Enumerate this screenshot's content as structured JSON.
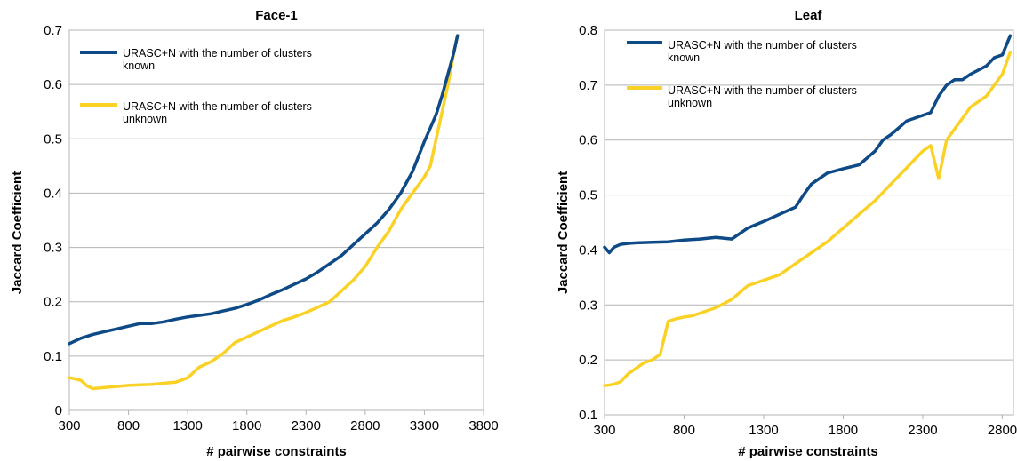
{
  "chart_data": [
    {
      "type": "line",
      "title": "Face-1",
      "xlabel": "# pairwise constraints",
      "ylabel": "Jaccard Coefficient",
      "xlim": [
        300,
        3800
      ],
      "ylim": [
        0,
        0.7
      ],
      "xticks": [
        300,
        800,
        1300,
        1800,
        2300,
        2800,
        3300,
        3800
      ],
      "yticks": [
        "0",
        "0.1",
        "0.2",
        "0.3",
        "0.4",
        "0.5",
        "0.6",
        "0.7"
      ],
      "grid": true,
      "legend_position": "top-left",
      "series": [
        {
          "name": "URASC+N with the number of clusters known",
          "color": "#0d4a86",
          "x": [
            300,
            400,
            500,
            600,
            700,
            800,
            900,
            1000,
            1100,
            1200,
            1300,
            1400,
            1500,
            1600,
            1700,
            1800,
            1900,
            2000,
            2100,
            2200,
            2300,
            2400,
            2500,
            2600,
            2700,
            2800,
            2900,
            3000,
            3100,
            3200,
            3300,
            3350,
            3400,
            3450,
            3500,
            3550,
            3580
          ],
          "y": [
            0.123,
            0.133,
            0.14,
            0.145,
            0.15,
            0.155,
            0.16,
            0.16,
            0.163,
            0.168,
            0.172,
            0.175,
            0.178,
            0.183,
            0.188,
            0.195,
            0.203,
            0.213,
            0.222,
            0.232,
            0.242,
            0.255,
            0.27,
            0.285,
            0.305,
            0.325,
            0.345,
            0.37,
            0.4,
            0.44,
            0.495,
            0.52,
            0.545,
            0.58,
            0.62,
            0.66,
            0.69
          ]
        },
        {
          "name": "URASC+N with the number of clusters unknown",
          "color": "#fad226",
          "x": [
            300,
            350,
            400,
            450,
            500,
            600,
            700,
            800,
            900,
            1000,
            1100,
            1200,
            1300,
            1400,
            1500,
            1600,
            1700,
            1800,
            1900,
            2000,
            2100,
            2200,
            2300,
            2400,
            2500,
            2600,
            2700,
            2800,
            2900,
            3000,
            3100,
            3200,
            3300,
            3350,
            3400,
            3450,
            3500,
            3550,
            3580
          ],
          "y": [
            0.06,
            0.058,
            0.055,
            0.045,
            0.04,
            0.042,
            0.044,
            0.046,
            0.047,
            0.048,
            0.05,
            0.052,
            0.06,
            0.08,
            0.09,
            0.105,
            0.125,
            0.135,
            0.145,
            0.155,
            0.165,
            0.172,
            0.18,
            0.19,
            0.2,
            0.22,
            0.24,
            0.265,
            0.3,
            0.33,
            0.37,
            0.4,
            0.43,
            0.45,
            0.5,
            0.55,
            0.6,
            0.66,
            0.69
          ]
        }
      ]
    },
    {
      "type": "line",
      "title": "Leaf",
      "xlabel": "# pairwise constraints",
      "ylabel": "Jaccard Coefficient",
      "xlim": [
        300,
        2870
      ],
      "ylim": [
        0.1,
        0.8
      ],
      "xticks": [
        300,
        800,
        1300,
        1800,
        2300,
        2800
      ],
      "yticks": [
        "0.1",
        "0.2",
        "0.3",
        "0.4",
        "0.5",
        "0.6",
        "0.7",
        "0.8"
      ],
      "grid": true,
      "legend_position": "top-left",
      "series": [
        {
          "name": "URASC+N with the number of clusters known",
          "color": "#0d4a86",
          "x": [
            300,
            330,
            360,
            400,
            450,
            500,
            600,
            700,
            800,
            900,
            1000,
            1100,
            1150,
            1200,
            1300,
            1400,
            1500,
            1550,
            1600,
            1700,
            1800,
            1900,
            2000,
            2050,
            2100,
            2200,
            2300,
            2350,
            2400,
            2450,
            2500,
            2550,
            2600,
            2700,
            2750,
            2800,
            2850
          ],
          "y": [
            0.405,
            0.395,
            0.405,
            0.41,
            0.412,
            0.413,
            0.414,
            0.415,
            0.418,
            0.42,
            0.423,
            0.42,
            0.43,
            0.44,
            0.452,
            0.465,
            0.478,
            0.5,
            0.52,
            0.54,
            0.548,
            0.555,
            0.58,
            0.6,
            0.61,
            0.635,
            0.645,
            0.65,
            0.68,
            0.7,
            0.71,
            0.71,
            0.72,
            0.735,
            0.75,
            0.755,
            0.79
          ]
        },
        {
          "name": "URASC+N with the number of clusters unknown",
          "color": "#fad226",
          "x": [
            300,
            350,
            400,
            450,
            500,
            550,
            600,
            650,
            700,
            750,
            800,
            850,
            900,
            950,
            1000,
            1100,
            1200,
            1300,
            1400,
            1500,
            1600,
            1700,
            1800,
            1900,
            2000,
            2100,
            2200,
            2300,
            2350,
            2400,
            2450,
            2500,
            2550,
            2600,
            2650,
            2700,
            2750,
            2800,
            2850
          ],
          "y": [
            0.153,
            0.155,
            0.16,
            0.175,
            0.185,
            0.195,
            0.2,
            0.21,
            0.27,
            0.275,
            0.278,
            0.28,
            0.285,
            0.29,
            0.295,
            0.31,
            0.335,
            0.345,
            0.355,
            0.375,
            0.395,
            0.415,
            0.44,
            0.465,
            0.49,
            0.52,
            0.55,
            0.58,
            0.59,
            0.53,
            0.6,
            0.62,
            0.64,
            0.66,
            0.67,
            0.68,
            0.7,
            0.72,
            0.76
          ]
        }
      ]
    }
  ]
}
